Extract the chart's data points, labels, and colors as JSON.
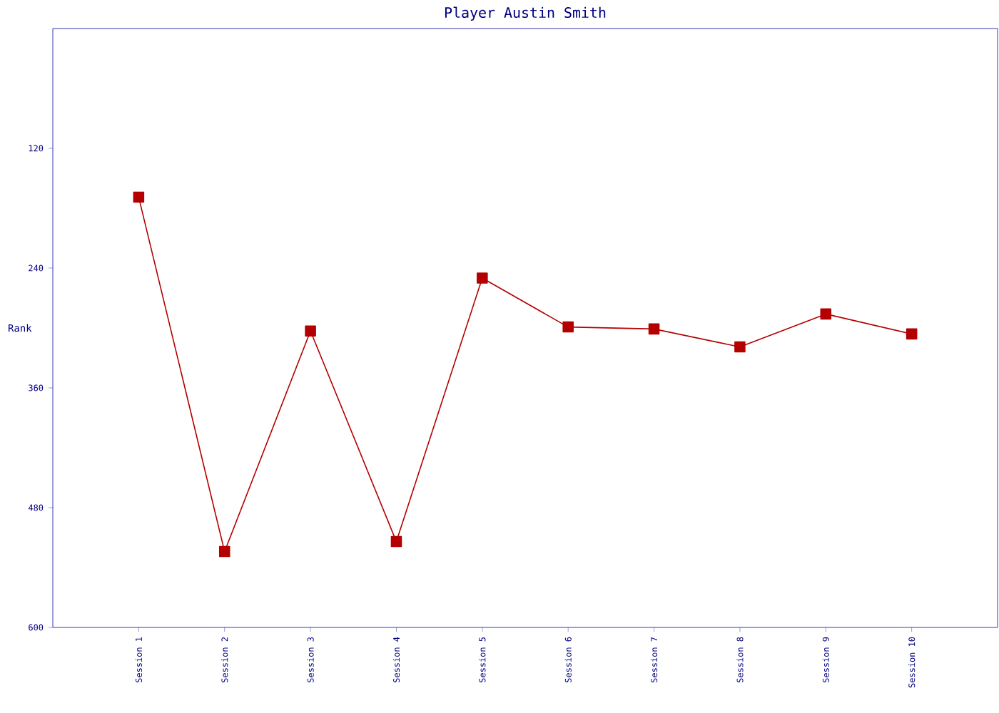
{
  "chart_data": {
    "type": "line",
    "title": "Player Austin Smith",
    "ylabel": "Rank",
    "categories": [
      "Session 1",
      "Session 2",
      "Session 3",
      "Session 4",
      "Session 5",
      "Session 6",
      "Session 7",
      "Session 8",
      "Session 9",
      "Session 10"
    ],
    "series": [
      {
        "color": "#b40000",
        "values": [
          169,
          524,
          303,
          514,
          250,
          299,
          301,
          319,
          286,
          306
        ]
      }
    ],
    "ylim": [
      600,
      0
    ],
    "yticks": [
      120,
      240,
      360,
      480,
      600
    ],
    "marker": "square",
    "line_style": "solid",
    "grid": false
  }
}
